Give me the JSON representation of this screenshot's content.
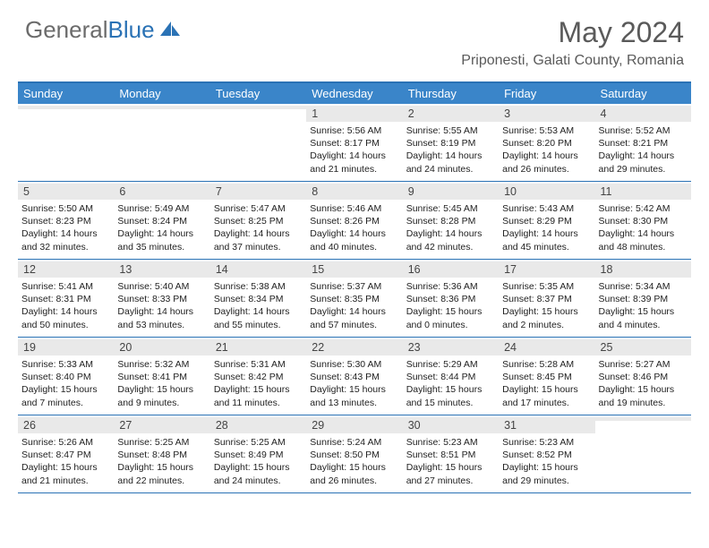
{
  "brand": {
    "name1": "General",
    "name2": "Blue"
  },
  "title": "May 2024",
  "location": "Priponesti, Galati County, Romania",
  "colors": {
    "header_bg": "#3a85c9",
    "border": "#2a72b5",
    "grey_band": "#e9e9e9",
    "text_grey": "#5a5a5a"
  },
  "day_headers": [
    "Sunday",
    "Monday",
    "Tuesday",
    "Wednesday",
    "Thursday",
    "Friday",
    "Saturday"
  ],
  "weeks": [
    [
      {
        "n": "",
        "sr": "",
        "ss": "",
        "dl": ""
      },
      {
        "n": "",
        "sr": "",
        "ss": "",
        "dl": ""
      },
      {
        "n": "",
        "sr": "",
        "ss": "",
        "dl": ""
      },
      {
        "n": "1",
        "sr": "Sunrise: 5:56 AM",
        "ss": "Sunset: 8:17 PM",
        "dl": "Daylight: 14 hours and 21 minutes."
      },
      {
        "n": "2",
        "sr": "Sunrise: 5:55 AM",
        "ss": "Sunset: 8:19 PM",
        "dl": "Daylight: 14 hours and 24 minutes."
      },
      {
        "n": "3",
        "sr": "Sunrise: 5:53 AM",
        "ss": "Sunset: 8:20 PM",
        "dl": "Daylight: 14 hours and 26 minutes."
      },
      {
        "n": "4",
        "sr": "Sunrise: 5:52 AM",
        "ss": "Sunset: 8:21 PM",
        "dl": "Daylight: 14 hours and 29 minutes."
      }
    ],
    [
      {
        "n": "5",
        "sr": "Sunrise: 5:50 AM",
        "ss": "Sunset: 8:23 PM",
        "dl": "Daylight: 14 hours and 32 minutes."
      },
      {
        "n": "6",
        "sr": "Sunrise: 5:49 AM",
        "ss": "Sunset: 8:24 PM",
        "dl": "Daylight: 14 hours and 35 minutes."
      },
      {
        "n": "7",
        "sr": "Sunrise: 5:47 AM",
        "ss": "Sunset: 8:25 PM",
        "dl": "Daylight: 14 hours and 37 minutes."
      },
      {
        "n": "8",
        "sr": "Sunrise: 5:46 AM",
        "ss": "Sunset: 8:26 PM",
        "dl": "Daylight: 14 hours and 40 minutes."
      },
      {
        "n": "9",
        "sr": "Sunrise: 5:45 AM",
        "ss": "Sunset: 8:28 PM",
        "dl": "Daylight: 14 hours and 42 minutes."
      },
      {
        "n": "10",
        "sr": "Sunrise: 5:43 AM",
        "ss": "Sunset: 8:29 PM",
        "dl": "Daylight: 14 hours and 45 minutes."
      },
      {
        "n": "11",
        "sr": "Sunrise: 5:42 AM",
        "ss": "Sunset: 8:30 PM",
        "dl": "Daylight: 14 hours and 48 minutes."
      }
    ],
    [
      {
        "n": "12",
        "sr": "Sunrise: 5:41 AM",
        "ss": "Sunset: 8:31 PM",
        "dl": "Daylight: 14 hours and 50 minutes."
      },
      {
        "n": "13",
        "sr": "Sunrise: 5:40 AM",
        "ss": "Sunset: 8:33 PM",
        "dl": "Daylight: 14 hours and 53 minutes."
      },
      {
        "n": "14",
        "sr": "Sunrise: 5:38 AM",
        "ss": "Sunset: 8:34 PM",
        "dl": "Daylight: 14 hours and 55 minutes."
      },
      {
        "n": "15",
        "sr": "Sunrise: 5:37 AM",
        "ss": "Sunset: 8:35 PM",
        "dl": "Daylight: 14 hours and 57 minutes."
      },
      {
        "n": "16",
        "sr": "Sunrise: 5:36 AM",
        "ss": "Sunset: 8:36 PM",
        "dl": "Daylight: 15 hours and 0 minutes."
      },
      {
        "n": "17",
        "sr": "Sunrise: 5:35 AM",
        "ss": "Sunset: 8:37 PM",
        "dl": "Daylight: 15 hours and 2 minutes."
      },
      {
        "n": "18",
        "sr": "Sunrise: 5:34 AM",
        "ss": "Sunset: 8:39 PM",
        "dl": "Daylight: 15 hours and 4 minutes."
      }
    ],
    [
      {
        "n": "19",
        "sr": "Sunrise: 5:33 AM",
        "ss": "Sunset: 8:40 PM",
        "dl": "Daylight: 15 hours and 7 minutes."
      },
      {
        "n": "20",
        "sr": "Sunrise: 5:32 AM",
        "ss": "Sunset: 8:41 PM",
        "dl": "Daylight: 15 hours and 9 minutes."
      },
      {
        "n": "21",
        "sr": "Sunrise: 5:31 AM",
        "ss": "Sunset: 8:42 PM",
        "dl": "Daylight: 15 hours and 11 minutes."
      },
      {
        "n": "22",
        "sr": "Sunrise: 5:30 AM",
        "ss": "Sunset: 8:43 PM",
        "dl": "Daylight: 15 hours and 13 minutes."
      },
      {
        "n": "23",
        "sr": "Sunrise: 5:29 AM",
        "ss": "Sunset: 8:44 PM",
        "dl": "Daylight: 15 hours and 15 minutes."
      },
      {
        "n": "24",
        "sr": "Sunrise: 5:28 AM",
        "ss": "Sunset: 8:45 PM",
        "dl": "Daylight: 15 hours and 17 minutes."
      },
      {
        "n": "25",
        "sr": "Sunrise: 5:27 AM",
        "ss": "Sunset: 8:46 PM",
        "dl": "Daylight: 15 hours and 19 minutes."
      }
    ],
    [
      {
        "n": "26",
        "sr": "Sunrise: 5:26 AM",
        "ss": "Sunset: 8:47 PM",
        "dl": "Daylight: 15 hours and 21 minutes."
      },
      {
        "n": "27",
        "sr": "Sunrise: 5:25 AM",
        "ss": "Sunset: 8:48 PM",
        "dl": "Daylight: 15 hours and 22 minutes."
      },
      {
        "n": "28",
        "sr": "Sunrise: 5:25 AM",
        "ss": "Sunset: 8:49 PM",
        "dl": "Daylight: 15 hours and 24 minutes."
      },
      {
        "n": "29",
        "sr": "Sunrise: 5:24 AM",
        "ss": "Sunset: 8:50 PM",
        "dl": "Daylight: 15 hours and 26 minutes."
      },
      {
        "n": "30",
        "sr": "Sunrise: 5:23 AM",
        "ss": "Sunset: 8:51 PM",
        "dl": "Daylight: 15 hours and 27 minutes."
      },
      {
        "n": "31",
        "sr": "Sunrise: 5:23 AM",
        "ss": "Sunset: 8:52 PM",
        "dl": "Daylight: 15 hours and 29 minutes."
      },
      {
        "n": "",
        "sr": "",
        "ss": "",
        "dl": ""
      }
    ]
  ]
}
